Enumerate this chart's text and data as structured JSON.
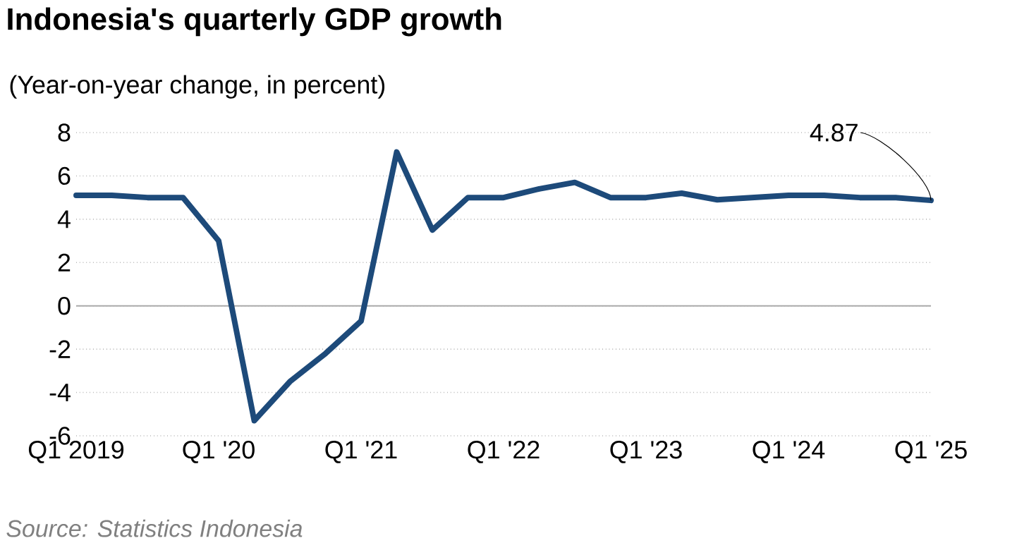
{
  "chart_data": {
    "type": "line",
    "title": "Indonesia's quarterly GDP growth",
    "subtitle": "(Year-on-year change, in percent)",
    "categories": [
      "Q1 2019",
      null,
      null,
      null,
      "Q1 '20",
      null,
      null,
      null,
      "Q1 '21",
      null,
      null,
      null,
      "Q1 '22",
      null,
      null,
      null,
      "Q1 '23",
      null,
      null,
      null,
      "Q1 '24",
      null,
      null,
      null,
      "Q1 '25"
    ],
    "values": [
      5.1,
      5.1,
      5.0,
      5.0,
      3.0,
      -5.3,
      -3.5,
      -2.2,
      -0.7,
      7.1,
      3.5,
      5.0,
      5.0,
      5.4,
      5.7,
      5.0,
      5.0,
      5.2,
      4.9,
      5.0,
      5.1,
      5.1,
      5.0,
      5.0,
      4.87
    ],
    "color": "#1d4a7a",
    "ylim": [
      -6,
      8
    ],
    "yticks": [
      -6,
      -4,
      -2,
      0,
      2,
      4,
      6,
      8
    ],
    "grid": "y",
    "marker": "none",
    "line_style": "solid",
    "ref_lines": [
      {
        "axis": "y",
        "value": 0,
        "color": "#aaaaaa"
      }
    ],
    "annotations": [
      {
        "text": "4.87",
        "x": "Q1 '25",
        "y": 4.87
      },
      "Source: Statistics Indonesia"
    ]
  }
}
